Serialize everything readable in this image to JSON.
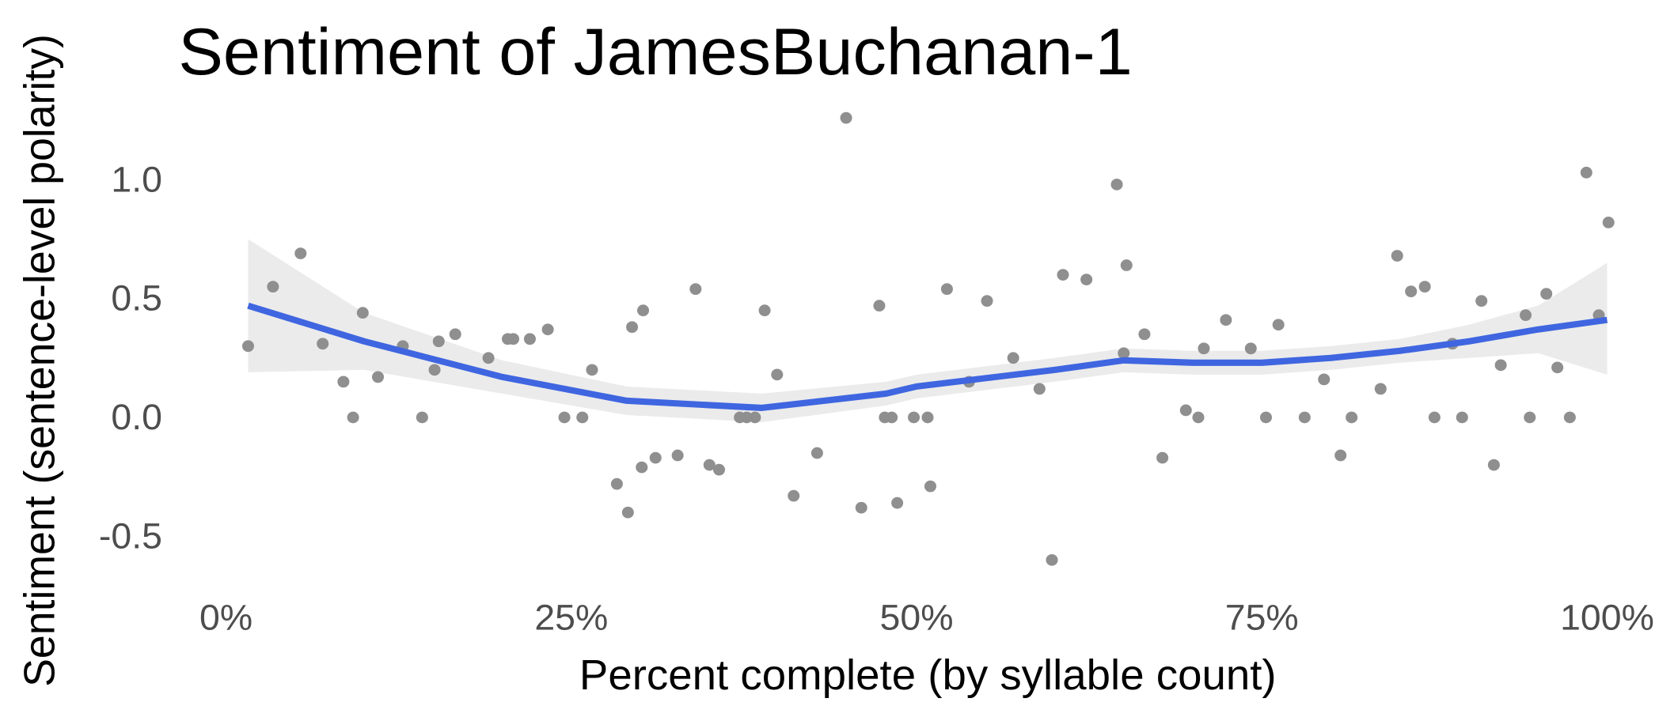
{
  "chart_data": {
    "type": "scatter",
    "title": "Sentiment of JamesBuchanan-1",
    "x_label": "Percent complete (by syllable count)",
    "y_label": "Sentiment (sentence-level polarity)",
    "point_color": "#8f8f8f",
    "x": [
      1.6,
      3.4,
      5.4,
      7.0,
      8.5,
      9.2,
      9.9,
      11.0,
      12.8,
      14.2,
      15.1,
      15.4,
      16.6,
      19.0,
      20.4,
      20.8,
      22.0,
      23.3,
      24.5,
      25.8,
      26.5,
      28.3,
      29.1,
      29.4,
      30.1,
      30.2,
      31.1,
      32.7,
      34.0,
      35.0,
      35.7,
      37.2,
      37.7,
      38.3,
      39.0,
      39.9,
      41.1,
      42.8,
      44.9,
      46.0,
      47.3,
      47.7,
      48.2,
      48.6,
      49.8,
      50.8,
      51.0,
      52.2,
      53.8,
      55.1,
      57.0,
      58.9,
      59.8,
      60.6,
      62.3,
      64.5,
      65.0,
      65.2,
      66.5,
      67.8,
      69.5,
      70.4,
      70.8,
      72.4,
      74.2,
      75.3,
      76.2,
      78.1,
      79.5,
      80.7,
      81.5,
      83.6,
      84.8,
      85.8,
      86.8,
      87.5,
      88.8,
      89.5,
      90.9,
      91.8,
      92.3,
      94.1,
      94.4,
      95.6,
      96.4,
      97.3,
      98.5,
      99.4,
      100.1
    ],
    "y": [
      0.31,
      0.56,
      0.7,
      0.32,
      0.16,
      0.01,
      0.45,
      0.18,
      0.31,
      0.01,
      0.21,
      0.33,
      0.36,
      0.26,
      0.34,
      0.34,
      0.34,
      0.38,
      0.01,
      0.01,
      0.21,
      -0.27,
      -0.39,
      0.39,
      -0.2,
      0.46,
      -0.16,
      -0.15,
      0.55,
      -0.19,
      -0.21,
      0.01,
      0.01,
      0.01,
      0.46,
      0.19,
      -0.32,
      -0.14,
      1.27,
      -0.37,
      0.48,
      0.01,
      0.01,
      -0.35,
      0.01,
      0.01,
      -0.28,
      0.55,
      0.16,
      0.5,
      0.26,
      0.13,
      -0.59,
      0.61,
      0.59,
      0.99,
      0.28,
      0.65,
      0.36,
      -0.16,
      0.04,
      0.01,
      0.3,
      0.42,
      0.3,
      0.01,
      0.4,
      0.01,
      0.17,
      -0.15,
      0.01,
      0.13,
      0.69,
      0.54,
      0.56,
      0.01,
      0.32,
      0.01,
      0.5,
      -0.19,
      0.23,
      0.44,
      0.01,
      0.53,
      0.22,
      0.01,
      1.04,
      0.44,
      0.83
    ],
    "smooth": {
      "color": "#3f66e0",
      "band_color": "#ebebeb",
      "x": [
        1.6,
        10,
        20,
        29,
        38.8,
        47.8,
        50,
        60,
        65,
        70,
        75,
        80,
        85,
        90,
        95,
        100
      ],
      "y": [
        0.48,
        0.33,
        0.18,
        0.08,
        0.05,
        0.11,
        0.14,
        0.21,
        0.25,
        0.24,
        0.24,
        0.26,
        0.29,
        0.33,
        0.38,
        0.42
      ],
      "ymin": [
        0.2,
        0.21,
        0.11,
        0.02,
        -0.01,
        0.06,
        0.09,
        0.16,
        0.2,
        0.19,
        0.19,
        0.21,
        0.24,
        0.26,
        0.28,
        0.19
      ],
      "ymax": [
        0.76,
        0.45,
        0.25,
        0.14,
        0.11,
        0.16,
        0.19,
        0.26,
        0.3,
        0.29,
        0.29,
        0.31,
        0.34,
        0.4,
        0.48,
        0.66
      ]
    },
    "xlim": [
      -3,
      105
    ],
    "ylim": [
      -0.65,
      1.32
    ],
    "xticks": [
      {
        "value": 0,
        "label": "0%"
      },
      {
        "value": 25,
        "label": "25%"
      },
      {
        "value": 50,
        "label": "50%"
      },
      {
        "value": 75,
        "label": "75%"
      },
      {
        "value": 100,
        "label": "100%"
      }
    ],
    "yticks": [
      -0.5,
      {
        "value": 0,
        "label": "0.0"
      },
      0.5,
      {
        "value": 1,
        "label": "1.0"
      }
    ],
    "grid": false
  }
}
